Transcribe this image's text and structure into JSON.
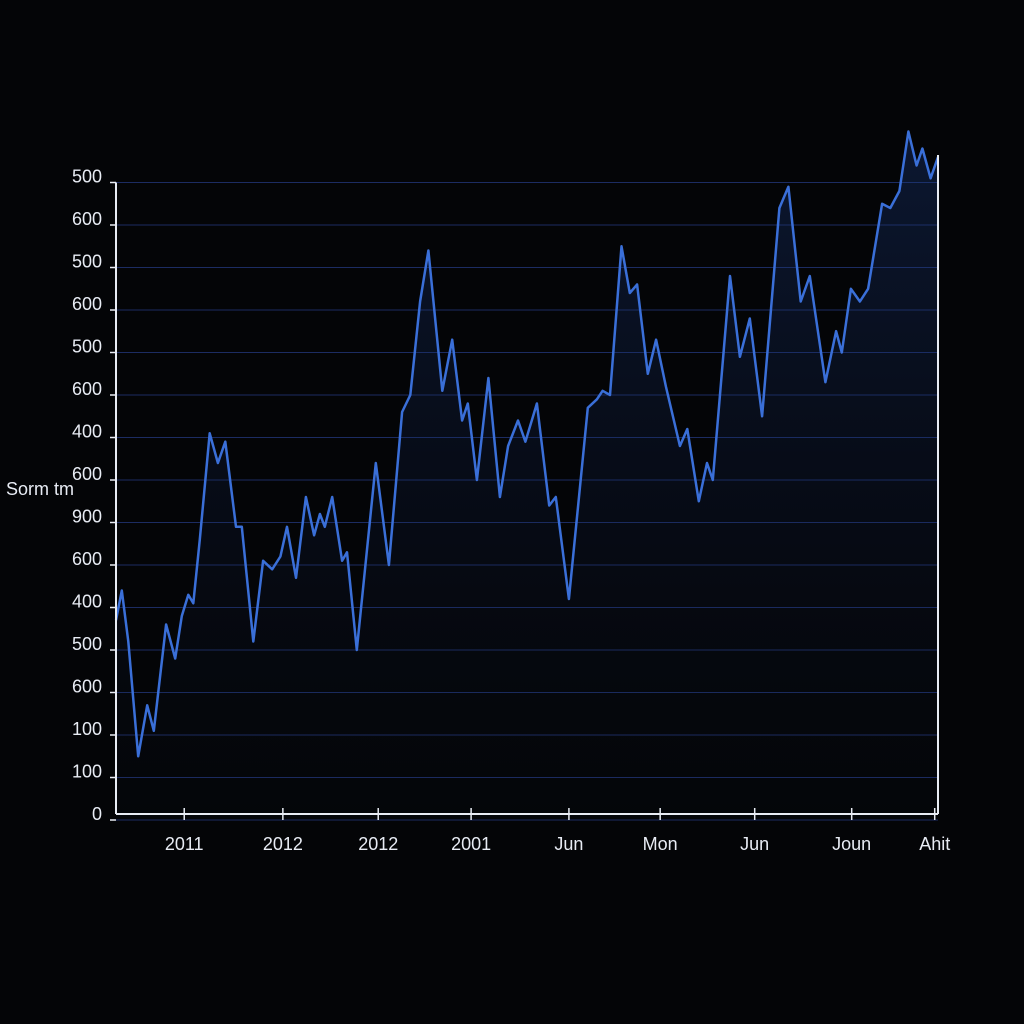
{
  "chart_data": {
    "type": "line",
    "y_label": "Sorm tm",
    "grid": true,
    "xlim": [
      0,
      100
    ],
    "xticks": [
      {
        "value": 8.3,
        "label": "2011"
      },
      {
        "value": 20.3,
        "label": "2012"
      },
      {
        "value": 31.9,
        "label": "2012"
      },
      {
        "value": 43.2,
        "label": "2001"
      },
      {
        "value": 55.1,
        "label": "Jun"
      },
      {
        "value": 66.2,
        "label": "Mon"
      },
      {
        "value": 77.7,
        "label": "Jun"
      },
      {
        "value": 89.5,
        "label": "Joun"
      },
      {
        "value": 99.6,
        "label": "Ahit"
      }
    ],
    "ylim": [
      0,
      15
    ],
    "yticks": [
      0,
      {
        "value": 1,
        "label": "100"
      },
      {
        "value": 2,
        "label": "100"
      },
      {
        "value": 3,
        "label": "600"
      },
      {
        "value": 4,
        "label": "500"
      },
      {
        "value": 5,
        "label": "400"
      },
      {
        "value": 6,
        "label": "600"
      },
      {
        "value": 7,
        "label": "900"
      },
      {
        "value": 8,
        "label": "600"
      },
      {
        "value": 9,
        "label": "400"
      },
      {
        "value": 10,
        "label": "600"
      },
      {
        "value": 11,
        "label": "500"
      },
      {
        "value": 12,
        "label": "600"
      },
      {
        "value": 13,
        "label": "500"
      },
      {
        "value": 14,
        "label": "600"
      },
      {
        "value": 15,
        "label": "500"
      }
    ],
    "x": [
      0,
      0.7,
      1.5,
      2.7,
      3.8,
      4.6,
      6.1,
      7.2,
      8.0,
      8.8,
      9.4,
      10.2,
      11.4,
      12.4,
      13.3,
      14.6,
      15.3,
      16.7,
      17.9,
      19.0,
      20.0,
      20.8,
      21.9,
      23.1,
      24.1,
      24.8,
      25.4,
      26.3,
      27.5,
      28.1,
      29.3,
      31.6,
      33.2,
      34.8,
      35.8,
      37.0,
      38.0,
      39.7,
      40.9,
      42.1,
      42.8,
      43.9,
      45.3,
      46.7,
      47.7,
      48.9,
      49.8,
      51.2,
      52.7,
      53.5,
      55.1,
      57.4,
      58.5,
      59.2,
      60.1,
      61.5,
      62.5,
      63.4,
      64.7,
      65.7,
      66.9,
      68.6,
      69.5,
      70.9,
      71.9,
      72.6,
      74.7,
      75.9,
      77.1,
      78.6,
      80.7,
      81.8,
      83.3,
      84.4,
      86.3,
      87.6,
      88.3,
      89.4,
      90.5,
      91.5,
      93.2,
      94.2,
      95.3,
      96.4,
      97.4,
      98.1,
      99.1,
      100
    ],
    "series": [
      {
        "color": "#3a6fd8",
        "values": [
          4.7,
          5.4,
          4.2,
          1.5,
          2.7,
          2.1,
          4.6,
          3.8,
          4.8,
          5.3,
          5.1,
          6.6,
          9.1,
          8.4,
          8.9,
          6.9,
          6.9,
          4.2,
          6.1,
          5.9,
          6.2,
          6.9,
          5.7,
          7.6,
          6.7,
          7.2,
          6.9,
          7.6,
          6.1,
          6.3,
          4.0,
          8.4,
          6.0,
          9.6,
          10.0,
          12.2,
          13.4,
          10.1,
          11.3,
          9.4,
          9.8,
          8.0,
          10.4,
          7.6,
          8.8,
          9.4,
          8.9,
          9.8,
          7.4,
          7.6,
          5.2,
          9.7,
          9.9,
          10.1,
          10.0,
          13.5,
          12.4,
          12.6,
          10.5,
          11.3,
          10.2,
          8.8,
          9.2,
          7.5,
          8.4,
          8.0,
          12.8,
          10.9,
          11.8,
          9.5,
          14.4,
          14.9,
          12.2,
          12.8,
          10.3,
          11.5,
          11.0,
          12.5,
          12.2,
          12.5,
          14.5,
          14.4,
          14.8,
          16.2,
          15.4,
          15.8,
          15.1,
          15.6
        ]
      }
    ]
  }
}
